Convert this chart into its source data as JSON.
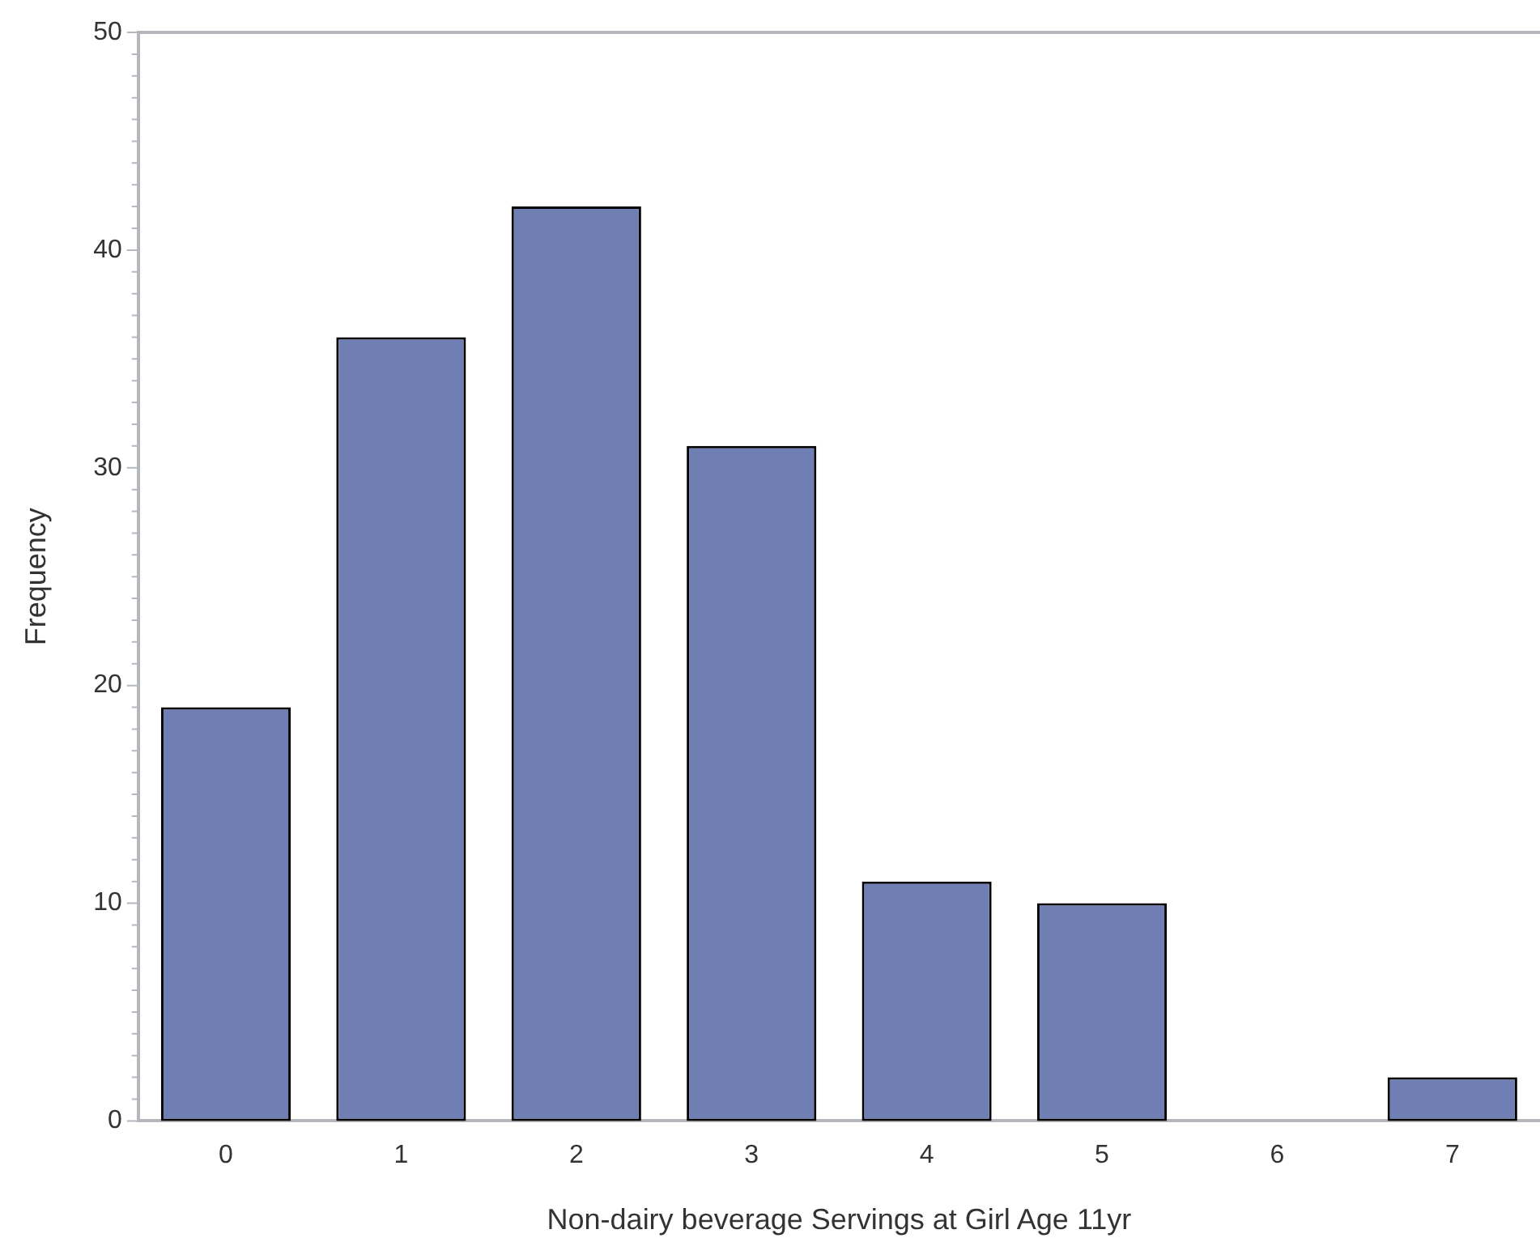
{
  "chart_data": {
    "type": "bar",
    "xlabel": "Non-dairy beverage Servings at Girl Age 11yr",
    "ylabel": "Frequency",
    "categories": [
      "0",
      "1",
      "2",
      "3",
      "4",
      "5",
      "6",
      "7"
    ],
    "values": [
      19,
      36,
      42,
      31,
      11,
      10,
      0,
      2
    ],
    "color": "#6f7eb3",
    "ylim": [
      0,
      50
    ],
    "yticks": [
      0,
      {
        "value": 1,
        "label": null
      },
      {
        "value": 2,
        "label": null
      },
      {
        "value": 3,
        "label": null
      },
      {
        "value": 4,
        "label": null
      },
      {
        "value": 5,
        "label": null
      },
      {
        "value": 6,
        "label": null
      },
      {
        "value": 7,
        "label": null
      },
      {
        "value": 8,
        "label": null
      },
      {
        "value": 9,
        "label": null
      },
      10,
      {
        "value": 11,
        "label": null
      },
      {
        "value": 12,
        "label": null
      },
      {
        "value": 13,
        "label": null
      },
      {
        "value": 14,
        "label": null
      },
      {
        "value": 15,
        "label": null
      },
      {
        "value": 16,
        "label": null
      },
      {
        "value": 17,
        "label": null
      },
      {
        "value": 18,
        "label": null
      },
      {
        "value": 19,
        "label": null
      },
      20,
      {
        "value": 21,
        "label": null
      },
      {
        "value": 22,
        "label": null
      },
      {
        "value": 23,
        "label": null
      },
      {
        "value": 24,
        "label": null
      },
      {
        "value": 25,
        "label": null
      },
      {
        "value": 26,
        "label": null
      },
      {
        "value": 27,
        "label": null
      },
      {
        "value": 28,
        "label": null
      },
      {
        "value": 29,
        "label": null
      },
      30,
      {
        "value": 31,
        "label": null
      },
      {
        "value": 32,
        "label": null
      },
      {
        "value": 33,
        "label": null
      },
      {
        "value": 34,
        "label": null
      },
      {
        "value": 35,
        "label": null
      },
      {
        "value": 36,
        "label": null
      },
      {
        "value": 37,
        "label": null
      },
      {
        "value": 38,
        "label": null
      },
      {
        "value": 39,
        "label": null
      },
      40,
      {
        "value": 41,
        "label": null
      },
      {
        "value": 42,
        "label": null
      },
      {
        "value": 43,
        "label": null
      },
      {
        "value": 44,
        "label": null
      },
      {
        "value": 45,
        "label": null
      },
      {
        "value": 46,
        "label": null
      },
      {
        "value": 47,
        "label": null
      },
      {
        "value": 48,
        "label": null
      },
      {
        "value": 49,
        "label": null
      },
      50
    ],
    "grid": false,
    "legend": false
  }
}
